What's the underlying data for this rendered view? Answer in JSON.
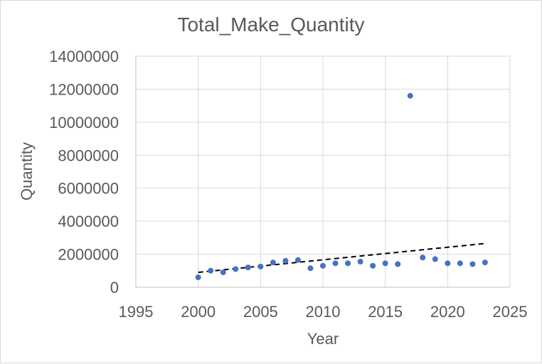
{
  "chart_data": {
    "type": "scatter",
    "title": "Total_Make_Quantity",
    "xlabel": "Year",
    "ylabel": "Quantity",
    "xlim": [
      1995,
      2025
    ],
    "ylim": [
      0,
      14000000
    ],
    "xticks": [
      1995,
      2000,
      2005,
      2010,
      2015,
      2020,
      2025
    ],
    "yticks": [
      0,
      2000000,
      4000000,
      6000000,
      8000000,
      10000000,
      12000000,
      14000000
    ],
    "grid": true,
    "legend": "none",
    "point_color": "#4472c4",
    "x": [
      2000,
      2001,
      2002,
      2003,
      2004,
      2005,
      2006,
      2007,
      2008,
      2009,
      2010,
      2011,
      2012,
      2013,
      2014,
      2015,
      2016,
      2017,
      2018,
      2019,
      2020,
      2021,
      2022,
      2023
    ],
    "y": [
      600000,
      1000000,
      900000,
      1100000,
      1200000,
      1250000,
      1500000,
      1600000,
      1650000,
      1150000,
      1300000,
      1450000,
      1450000,
      1550000,
      1300000,
      1450000,
      1400000,
      11600000,
      1800000,
      1700000,
      1450000,
      1450000,
      1400000,
      1500000
    ],
    "trendline": {
      "type": "linear",
      "style": "dashed",
      "color": "#000000",
      "x": [
        2000,
        2023
      ],
      "y": [
        900000,
        2650000
      ]
    }
  }
}
